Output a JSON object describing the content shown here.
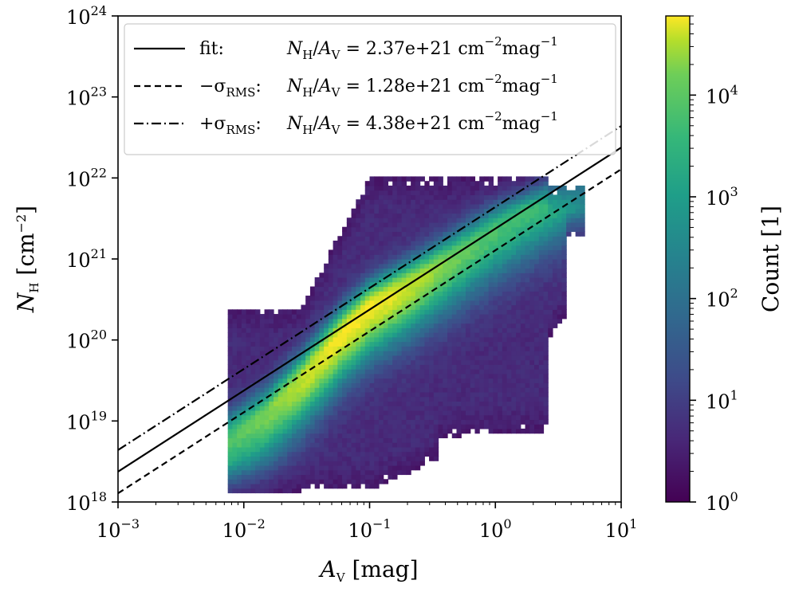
{
  "chart_data": {
    "type": "heatmap",
    "title": "",
    "xlabel": "A_V [mag]",
    "ylabel": "N_H [cm^-2]",
    "x_scale": "log",
    "y_scale": "log",
    "xlim": [
      0.001,
      10
    ],
    "ylim": [
      1e+18,
      1e+24
    ],
    "x_ticks": [
      {
        "base": "10",
        "exp": "−3",
        "value": 0.001
      },
      {
        "base": "10",
        "exp": "−2",
        "value": 0.01
      },
      {
        "base": "10",
        "exp": "−1",
        "value": 0.1
      },
      {
        "base": "10",
        "exp": "0",
        "value": 1
      },
      {
        "base": "10",
        "exp": "1",
        "value": 10
      }
    ],
    "y_ticks": [
      {
        "base": "10",
        "exp": "18",
        "value": 1e+18
      },
      {
        "base": "10",
        "exp": "19",
        "value": 1e+19
      },
      {
        "base": "10",
        "exp": "20",
        "value": 1e+20
      },
      {
        "base": "10",
        "exp": "21",
        "value": 1e+21
      },
      {
        "base": "10",
        "exp": "22",
        "value": 1e+22
      },
      {
        "base": "10",
        "exp": "23",
        "value": 1e+23
      },
      {
        "base": "10",
        "exp": "24",
        "value": 1e+24
      }
    ],
    "colorbar": {
      "label": "Count [1]",
      "scale": "log",
      "range": [
        1,
        60000
      ],
      "colormap": "viridis",
      "ticks": [
        {
          "base": "10",
          "exp": "0",
          "value": 1
        },
        {
          "base": "10",
          "exp": "1",
          "value": 10
        },
        {
          "base": "10",
          "exp": "2",
          "value": 100
        },
        {
          "base": "10",
          "exp": "3",
          "value": 1000
        },
        {
          "base": "10",
          "exp": "4",
          "value": 10000
        }
      ]
    },
    "histogram": {
      "core_ridge": [
        {
          "av": 0.015,
          "nh": 1.2e+19
        },
        {
          "av": 0.03,
          "nh": 3.5e+19
        },
        {
          "av": 0.06,
          "nh": 1.2e+20
        },
        {
          "av": 0.1,
          "nh": 2.5e+20
        },
        {
          "av": 0.2,
          "nh": 4.5e+20
        },
        {
          "av": 0.5,
          "nh": 1.1e+21
        },
        {
          "av": 1.0,
          "nh": 2.2e+21
        },
        {
          "av": 3.0,
          "nh": 6e+21
        }
      ],
      "peak_count_location": {
        "av": 0.08,
        "nh": 2e+20
      }
    },
    "series": [
      {
        "name": "fit",
        "style": "solid",
        "slope": 2.37e+21,
        "label_text": "fit:",
        "eq_value": "2.37e+21"
      },
      {
        "name": "-sigma_RMS",
        "style": "dashed",
        "slope": 1.28e+21,
        "label_text": "−σ",
        "eq_value": "1.28e+21"
      },
      {
        "name": "+sigma_RMS",
        "style": "dashdot",
        "slope": 4.38e+21,
        "label_text": "+σ",
        "eq_value": "4.38e+21"
      }
    ],
    "legend": {
      "location": "upper-left",
      "units": "cm",
      "units_exp": "−2",
      "mag": "mag",
      "mag_exp": "−1",
      "sigma_sub": "RMS",
      "eq_lhs_n": "N",
      "eq_lhs_n_sub": "H",
      "eq_lhs_a": "A",
      "eq_lhs_a_sub": "V"
    },
    "colors": {
      "line": "#000000",
      "frame": "#000000"
    }
  }
}
